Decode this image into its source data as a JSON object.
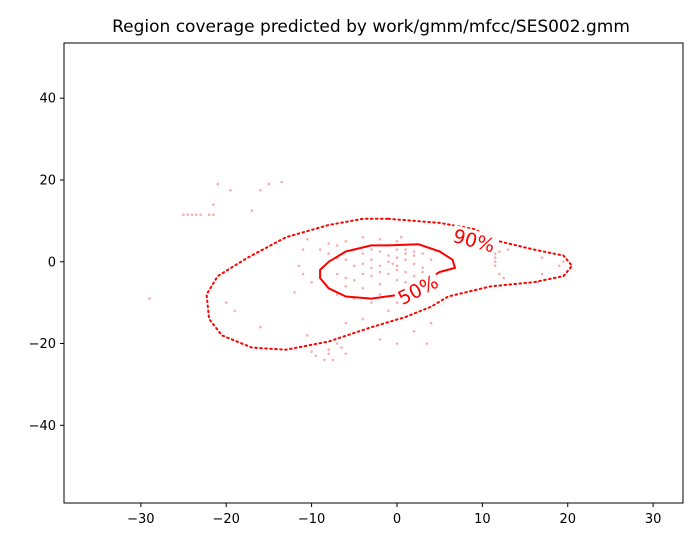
{
  "chart_data": {
    "type": "scatter",
    "title": "Region coverage predicted by work/gmm/mfcc/SES002.gmm",
    "xlabel": "",
    "ylabel": "",
    "xlim": [
      -39,
      33.5
    ],
    "ylim": [
      -59,
      53.5
    ],
    "xticks": [
      -30,
      -20,
      -10,
      0,
      10,
      20,
      30
    ],
    "yticks": [
      -40,
      -20,
      0,
      20,
      40
    ],
    "xtick_labels": [
      "−30",
      "−20",
      "−10",
      "0",
      "10",
      "20",
      "30"
    ],
    "ytick_labels": [
      "−40",
      "−20",
      "0",
      "20",
      "40"
    ],
    "grid": false,
    "colors": {
      "contour": "#ff0000",
      "points": "#f4a6a6",
      "frame": "#000000"
    },
    "contours": [
      {
        "level": "90%",
        "label": "90%",
        "style": "dotted",
        "label_at": [
          9,
          5
        ],
        "label_rotation": 15,
        "points": [
          [
            -1,
            10.5
          ],
          [
            5,
            9.5
          ],
          [
            9,
            8
          ],
          [
            12,
            5
          ],
          [
            16,
            3
          ],
          [
            19.5,
            1.5
          ],
          [
            20.5,
            -1
          ],
          [
            19.5,
            -3.5
          ],
          [
            16,
            -5
          ],
          [
            11,
            -6
          ],
          [
            8,
            -7.5
          ],
          [
            6,
            -8.5
          ],
          [
            4,
            -11
          ],
          [
            1,
            -13.5
          ],
          [
            -3,
            -16
          ],
          [
            -8,
            -19.5
          ],
          [
            -13,
            -21.5
          ],
          [
            -17,
            -21
          ],
          [
            -20.5,
            -18
          ],
          [
            -22,
            -14
          ],
          [
            -22.3,
            -8
          ],
          [
            -21,
            -3.5
          ],
          [
            -17.5,
            1
          ],
          [
            -13,
            6
          ],
          [
            -8,
            9
          ],
          [
            -4,
            10.5
          ],
          [
            -1,
            10.5
          ]
        ]
      },
      {
        "level": "50%",
        "label": "50%",
        "style": "solid",
        "label_at": [
          2.5,
          -7
        ],
        "label_rotation": -27,
        "points": [
          [
            -1,
            4
          ],
          [
            2.5,
            4.3
          ],
          [
            5,
            2.5
          ],
          [
            6.5,
            0.5
          ],
          [
            6.8,
            -1.5
          ],
          [
            5,
            -2.5
          ],
          [
            3,
            -5
          ],
          [
            0.5,
            -8
          ],
          [
            -3,
            -9
          ],
          [
            -6,
            -8.5
          ],
          [
            -8,
            -6.5
          ],
          [
            -9,
            -4
          ],
          [
            -9,
            -2
          ],
          [
            -8,
            0
          ],
          [
            -6,
            2.5
          ],
          [
            -3,
            4
          ],
          [
            -1,
            4
          ]
        ]
      }
    ],
    "points": [
      [
        -21,
        19
      ],
      [
        -19.5,
        17.5
      ],
      [
        -16,
        17.5
      ],
      [
        -15,
        19
      ],
      [
        -13.5,
        19.5
      ],
      [
        -25,
        11.5
      ],
      [
        -24.5,
        11.5
      ],
      [
        -24,
        11.5
      ],
      [
        -23.5,
        11.5
      ],
      [
        -23,
        11.5
      ],
      [
        -22,
        11.5
      ],
      [
        -21.5,
        11.5
      ],
      [
        -17,
        12.5
      ],
      [
        -21.5,
        14
      ],
      [
        -29,
        -9
      ],
      [
        -20,
        -10
      ],
      [
        -19,
        -12
      ],
      [
        -12,
        -7.5
      ],
      [
        -11.5,
        -1
      ],
      [
        -11,
        3
      ],
      [
        -10.5,
        5.5
      ],
      [
        -11,
        -3
      ],
      [
        -10,
        -5
      ],
      [
        -10.5,
        -18
      ],
      [
        -10,
        -22
      ],
      [
        -9.5,
        -23
      ],
      [
        -8.5,
        -24
      ],
      [
        -8,
        -21.5
      ],
      [
        -8,
        -22.5
      ],
      [
        -7.5,
        -24
      ],
      [
        -7,
        -20
      ],
      [
        -6,
        -22.5
      ],
      [
        -6.5,
        -21
      ],
      [
        -9,
        3
      ],
      [
        -8,
        2
      ],
      [
        -7,
        1
      ],
      [
        -6,
        0.5
      ],
      [
        -5,
        -1
      ],
      [
        -4,
        -0.5
      ],
      [
        -3,
        0.5
      ],
      [
        -2,
        -1
      ],
      [
        -1,
        0
      ],
      [
        0,
        -1
      ],
      [
        1,
        0.5
      ],
      [
        2,
        -0.5
      ],
      [
        3,
        -1.5
      ],
      [
        4,
        0.5
      ],
      [
        -7,
        -3
      ],
      [
        -6,
        -4
      ],
      [
        -5,
        -4.5
      ],
      [
        -4,
        -3
      ],
      [
        -3,
        -3.5
      ],
      [
        -2,
        -2.5
      ],
      [
        -1,
        -3
      ],
      [
        0,
        -2
      ],
      [
        1,
        -2.5
      ],
      [
        2,
        -3.5
      ],
      [
        3,
        -2.5
      ],
      [
        -0.5,
        -0.5
      ],
      [
        -5,
        3
      ],
      [
        -4,
        2
      ],
      [
        -3,
        3
      ],
      [
        -2,
        2.5
      ],
      [
        -1,
        1.5
      ],
      [
        0,
        1
      ],
      [
        1,
        2
      ],
      [
        2,
        1.5
      ],
      [
        -6,
        -6
      ],
      [
        -4,
        -6.5
      ],
      [
        -2,
        -5.5
      ],
      [
        0,
        -4.5
      ],
      [
        1,
        -5
      ],
      [
        -3,
        -1.5
      ],
      [
        -7,
        -8
      ],
      [
        -5,
        -9
      ],
      [
        -3,
        -10
      ],
      [
        0,
        -10
      ],
      [
        -2,
        -8
      ],
      [
        2,
        -7
      ],
      [
        3,
        -9
      ],
      [
        -1,
        -12
      ],
      [
        -4,
        -14
      ],
      [
        -6,
        -15
      ],
      [
        -2,
        -19
      ],
      [
        0,
        -20
      ],
      [
        2,
        -17
      ],
      [
        3.5,
        -20
      ],
      [
        4,
        -15
      ],
      [
        0,
        5
      ],
      [
        0.5,
        6
      ],
      [
        1,
        3
      ],
      [
        2,
        2.5
      ],
      [
        3,
        2
      ],
      [
        0,
        3
      ],
      [
        -1,
        4
      ],
      [
        -2,
        5.5
      ],
      [
        -4,
        6
      ],
      [
        -6,
        5
      ],
      [
        -7,
        4
      ],
      [
        -8,
        4.5
      ],
      [
        11.5,
        2
      ],
      [
        11.5,
        1
      ],
      [
        11.5,
        0
      ],
      [
        11.5,
        -1
      ],
      [
        12,
        2.5
      ],
      [
        12,
        -3
      ],
      [
        12.5,
        -4
      ],
      [
        16.5,
        -5
      ],
      [
        17,
        -3
      ],
      [
        19,
        -1
      ],
      [
        19.5,
        0
      ],
      [
        17,
        1
      ],
      [
        13,
        3
      ],
      [
        -16,
        -16
      ]
    ]
  }
}
